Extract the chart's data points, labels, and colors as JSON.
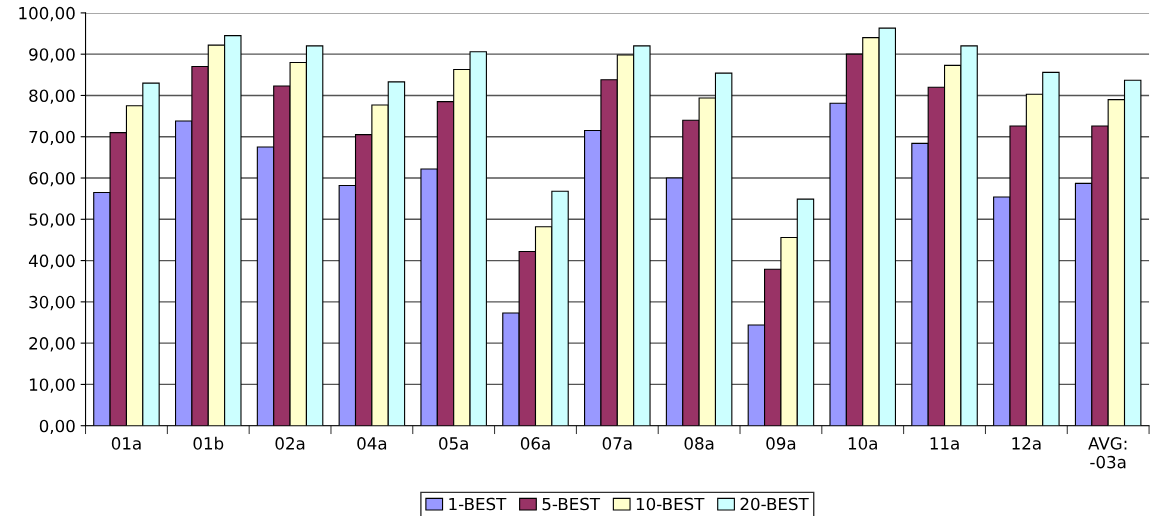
{
  "chart_data": {
    "type": "bar",
    "categories": [
      "01a",
      "01b",
      "02a",
      "04a",
      "05a",
      "06a",
      "07a",
      "08a",
      "09a",
      "10a",
      "11a",
      "12a",
      "AVG:\n-03a"
    ],
    "series": [
      {
        "name": "1-BEST",
        "color": "#9999ff",
        "values": [
          56.5,
          73.8,
          67.5,
          58.2,
          62.2,
          27.3,
          71.5,
          60.0,
          24.4,
          78.1,
          68.4,
          55.4,
          58.7
        ]
      },
      {
        "name": "5-BEST",
        "color": "#993366",
        "values": [
          71.0,
          87.0,
          82.3,
          70.5,
          78.5,
          42.2,
          83.8,
          74.0,
          37.9,
          90.0,
          82.0,
          72.6,
          72.6
        ]
      },
      {
        "name": "10-BEST",
        "color": "#ffffcc",
        "values": [
          77.5,
          92.2,
          88.0,
          77.7,
          86.3,
          48.2,
          89.8,
          79.4,
          45.6,
          94.0,
          87.3,
          80.3,
          79.0
        ]
      },
      {
        "name": "20-BEST",
        "color": "#ccffff",
        "values": [
          83.0,
          94.5,
          92.0,
          83.3,
          90.6,
          56.8,
          92.0,
          85.4,
          54.9,
          96.3,
          92.0,
          85.6,
          83.7
        ]
      }
    ],
    "ylim": [
      0,
      100
    ],
    "yticks": [
      {
        "value": 0,
        "label": "0,00"
      },
      {
        "value": 10,
        "label": "10,00"
      },
      {
        "value": 20,
        "label": "20,00"
      },
      {
        "value": 30,
        "label": "30,00"
      },
      {
        "value": 40,
        "label": "40,00"
      },
      {
        "value": 50,
        "label": "50,00"
      },
      {
        "value": 60,
        "label": "60,00"
      },
      {
        "value": 70,
        "label": "70,00"
      },
      {
        "value": 80,
        "label": "80,00"
      },
      {
        "value": 90,
        "label": "90,00"
      },
      {
        "value": 100,
        "label": "100,00"
      }
    ],
    "grid": "y",
    "legend": "bottom"
  }
}
